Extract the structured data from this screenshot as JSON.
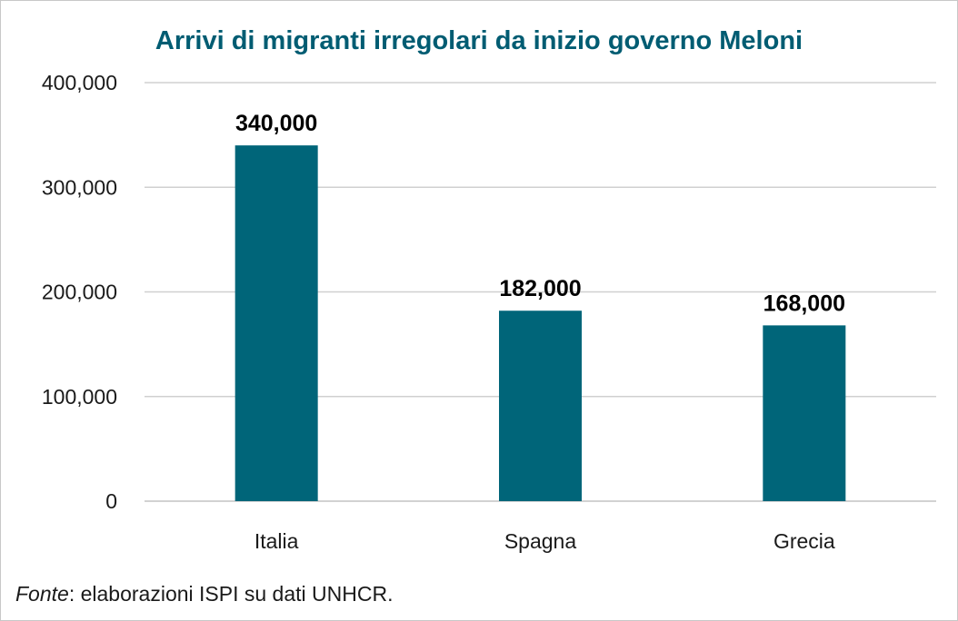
{
  "chart_data": {
    "type": "bar",
    "title": "Arrivi di migranti irregolari da inizio governo Meloni",
    "categories": [
      "Italia",
      "Spagna",
      "Grecia"
    ],
    "values": [
      340000,
      182000,
      168000
    ],
    "value_labels": [
      "340,000",
      "182,000",
      "168,000"
    ],
    "y_ticks": [
      0,
      100000,
      200000,
      300000,
      400000
    ],
    "y_tick_labels": [
      "0",
      "100,000",
      "200,000",
      "300,000",
      "400,000"
    ],
    "ylim": [
      0,
      400000
    ],
    "grid": true,
    "legend": "none",
    "bar_color": "#006579"
  },
  "footer": {
    "source_label": "Fonte",
    "source_text": ": elaborazioni ISPI su dati UNHCR."
  },
  "colors": {
    "title": "#005c72",
    "bar": "#006579",
    "grid": "#d0d0d0"
  }
}
